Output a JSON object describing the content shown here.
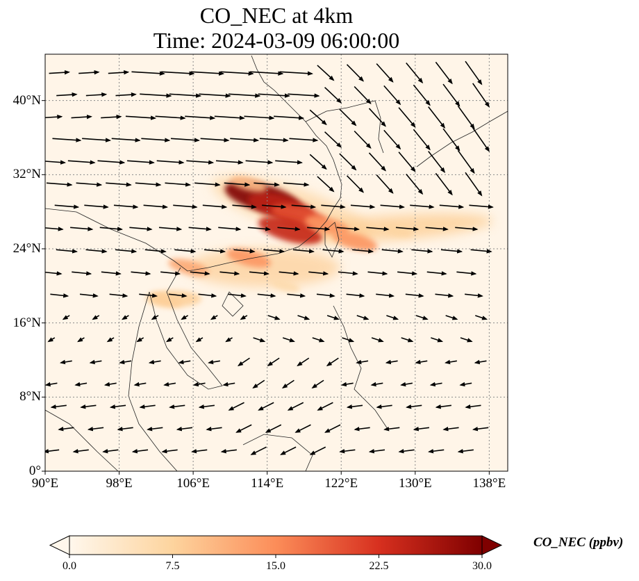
{
  "title": {
    "line1": "CO_NEC at 4km",
    "line2": "Time: 2024-03-09 06:00:00"
  },
  "map": {
    "variable": "CO_NEC",
    "projection": "PlateCarree",
    "lon_range": [
      90,
      140
    ],
    "lat_range": [
      0,
      45
    ],
    "gridlines": "dotted gray",
    "lat_ticks": [
      {
        "value": 0,
        "label": "0°"
      },
      {
        "value": 8,
        "label": "8°N"
      },
      {
        "value": 16,
        "label": "16°N"
      },
      {
        "value": 24,
        "label": "24°N"
      },
      {
        "value": 32,
        "label": "32°N"
      },
      {
        "value": 40,
        "label": "40°N"
      }
    ],
    "lon_ticks": [
      {
        "value": 90,
        "label": "90°E"
      },
      {
        "value": 98,
        "label": "98°E"
      },
      {
        "value": 106,
        "label": "106°E"
      },
      {
        "value": 114,
        "label": "114°E"
      },
      {
        "value": 122,
        "label": "122°E"
      },
      {
        "value": 130,
        "label": "130°E"
      },
      {
        "value": 138,
        "label": "138°E"
      }
    ],
    "plume_regions": [
      {
        "lon": 113.5,
        "lat": 29.5,
        "value": 30
      },
      {
        "lon": 115.5,
        "lat": 28.5,
        "value": 25
      },
      {
        "lon": 117.5,
        "lat": 27.5,
        "value": 20
      },
      {
        "lon": 116.5,
        "lat": 26.0,
        "value": 24
      },
      {
        "lon": 120.5,
        "lat": 26.5,
        "value": 14
      },
      {
        "lon": 123.5,
        "lat": 24.8,
        "value": 14
      },
      {
        "lon": 128.0,
        "lat": 26.0,
        "value": 7
      },
      {
        "lon": 112.0,
        "lat": 23.0,
        "value": 14
      },
      {
        "lon": 105.5,
        "lat": 22.0,
        "value": 12
      },
      {
        "lon": 103.0,
        "lat": 18.5,
        "value": 8
      },
      {
        "lon": 116.0,
        "lat": 20.0,
        "value": 6
      },
      {
        "lon": 112.0,
        "lat": 31.0,
        "value": 10
      }
    ],
    "wind_field": "westerly flow north of ~18°N turning to easterlies in the tropics; strong north-westerlies over Japan/Korea"
  },
  "colorbar": {
    "colormap": "OrRd",
    "label": "CO_NEC (ppbv)",
    "min": 0.0,
    "max": 30.0,
    "extend": "both",
    "ticks": [
      "0.0",
      "7.5",
      "15.0",
      "22.5",
      "30.0"
    ]
  }
}
